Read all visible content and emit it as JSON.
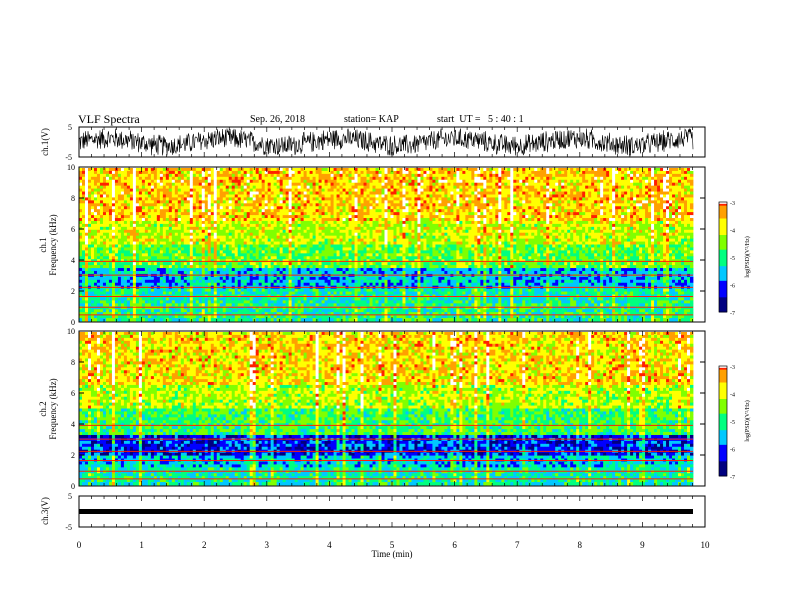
{
  "header": {
    "title": "VLF Spectra",
    "date": "Sep. 26, 2018",
    "station": "station= KAP",
    "start": "start  UT =   5 : 40 : 1"
  },
  "colors": {
    "ch1_wave": "#000000",
    "ch3_wave": "#000000",
    "colormap": [
      "#000080",
      "#0000ff",
      "#00c8ff",
      "#00ff80",
      "#80ff00",
      "#ffff00",
      "#ffa000",
      "#ff2000",
      "#ffffff"
    ]
  },
  "chart_data": [
    {
      "type": "line",
      "panel": "ch1-waveform",
      "ylabel": "ch.1(V)",
      "ylim": [
        -5,
        5
      ],
      "yticks": [
        "5",
        "-5"
      ],
      "xlim": [
        0,
        10
      ],
      "description_values": "dense noise waveform, amplitude roughly between -4 and 4 V"
    },
    {
      "type": "heatmap",
      "panel": "ch1-spectrogram",
      "ylabel": "ch.1\nFrequency (kHz)",
      "ylabel_top": "ch.1",
      "ylabel_bottom": "Frequency (kHz)",
      "ylim": [
        0,
        10
      ],
      "yticks": [
        "0",
        "2",
        "4",
        "6",
        "8",
        "10"
      ],
      "xlim": [
        0,
        9.85
      ],
      "colorbar": {
        "label": "log(PSD)(V²/Hz)",
        "range": [
          -7,
          -3
        ],
        "ticks": [
          "-3",
          "-4",
          "-5",
          "-6",
          "-7"
        ]
      },
      "bands": [
        {
          "f_low": 0,
          "f_high": 1.2,
          "level": -5.0
        },
        {
          "f_low": 1.2,
          "f_high": 2.2,
          "level": -5.2
        },
        {
          "f_low": 2.2,
          "f_high": 3.4,
          "level": -5.6
        },
        {
          "f_low": 3.4,
          "f_high": 5.0,
          "level": -4.6
        },
        {
          "f_low": 5.0,
          "f_high": 6.5,
          "level": -4.1
        },
        {
          "f_low": 6.5,
          "f_high": 10,
          "level": -3.6
        }
      ]
    },
    {
      "type": "heatmap",
      "panel": "ch2-spectrogram",
      "ylabel_top": "ch.2",
      "ylabel_bottom": "Frequency (kHz)",
      "ylim": [
        0,
        10
      ],
      "yticks": [
        "0",
        "2",
        "4",
        "6",
        "8",
        "10"
      ],
      "xlim": [
        0,
        9.85
      ],
      "colorbar": {
        "label": "log(PSD)(V²/Hz)",
        "range": [
          -7,
          -3
        ],
        "ticks": [
          "-3",
          "-4",
          "-5",
          "-6",
          "-7"
        ]
      },
      "bands": [
        {
          "f_low": 0,
          "f_high": 1.2,
          "level": -5.2
        },
        {
          "f_low": 1.2,
          "f_high": 2.0,
          "level": -5.5
        },
        {
          "f_low": 2.0,
          "f_high": 3.2,
          "level": -6.2
        },
        {
          "f_low": 3.2,
          "f_high": 5.0,
          "level": -4.8
        },
        {
          "f_low": 5.0,
          "f_high": 6.5,
          "level": -4.2
        },
        {
          "f_low": 6.5,
          "f_high": 10,
          "level": -3.7
        }
      ]
    },
    {
      "type": "line",
      "panel": "ch3-waveform",
      "ylabel": "ch.3(V)",
      "ylim": [
        -5,
        5
      ],
      "yticks": [
        "5",
        "-5"
      ],
      "xlim": [
        0,
        10
      ],
      "constant_value": 0
    }
  ],
  "xaxis": {
    "label": "Time (min)",
    "ticks": [
      "0",
      "1",
      "2",
      "3",
      "4",
      "5",
      "6",
      "7",
      "8",
      "9",
      "10"
    ],
    "range": [
      0,
      10
    ]
  }
}
